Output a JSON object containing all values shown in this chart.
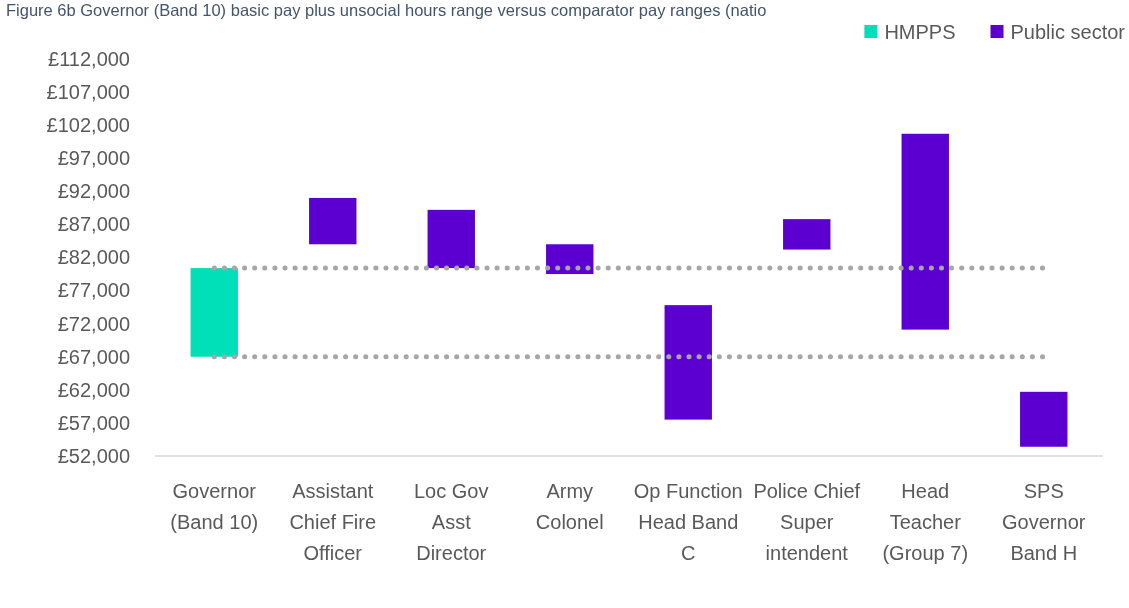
{
  "chart_data": {
    "type": "bar",
    "title": "Figure 6b Governor (Band 10) basic pay plus unsocial hours range versus comparator pay ranges (natio",
    "categories": [
      "Governor (Band 10)",
      "Assistant Chief Fire Officer",
      "Loc Gov Asst Director",
      "Army Colonel",
      "Op Function Head Band C",
      "Police Chief Super intendent",
      "Head Teacher (Group 7)",
      "SPS Governor Band H"
    ],
    "series": [
      {
        "name": "HMPPS",
        "color": "#00e0b8",
        "values": [
          13400,
          null,
          null,
          null,
          null,
          null,
          null,
          null
        ],
        "base": [
          67000,
          null,
          null,
          null,
          null,
          null,
          null,
          null
        ]
      },
      {
        "name": "Public sector",
        "color": "#5c00d2",
        "values": [
          null,
          7000,
          8800,
          4500,
          17300,
          4600,
          29600,
          8300
        ],
        "base": [
          null,
          84000,
          80400,
          79500,
          57500,
          83200,
          71100,
          53400
        ]
      }
    ],
    "ylim": [
      52000,
      112000
    ],
    "yticks": [
      {
        "value": 52000,
        "label": "£52,000"
      },
      {
        "value": 57000,
        "label": "£57,000"
      },
      {
        "value": 62000,
        "label": "£62,000"
      },
      {
        "value": 67000,
        "label": "£67,000"
      },
      {
        "value": 72000,
        "label": "£72,000"
      },
      {
        "value": 77000,
        "label": "£77,000"
      },
      {
        "value": 82000,
        "label": "£82,000"
      },
      {
        "value": 87000,
        "label": "£87,000"
      },
      {
        "value": 92000,
        "label": "£92,000"
      },
      {
        "value": 97000,
        "label": "£97,000"
      },
      {
        "value": 102000,
        "label": "£102,000"
      },
      {
        "value": 107000,
        "label": "£107,000"
      },
      {
        "value": 112000,
        "label": "£112,000"
      }
    ],
    "ref_lines": [
      {
        "axis": "y",
        "value": 80400,
        "color": "#a6a6a6",
        "line_style": "dotted"
      },
      {
        "axis": "y",
        "value": 67000,
        "color": "#a6a6a6",
        "line_style": "dotted"
      }
    ],
    "grid": false,
    "legend": "top right"
  }
}
